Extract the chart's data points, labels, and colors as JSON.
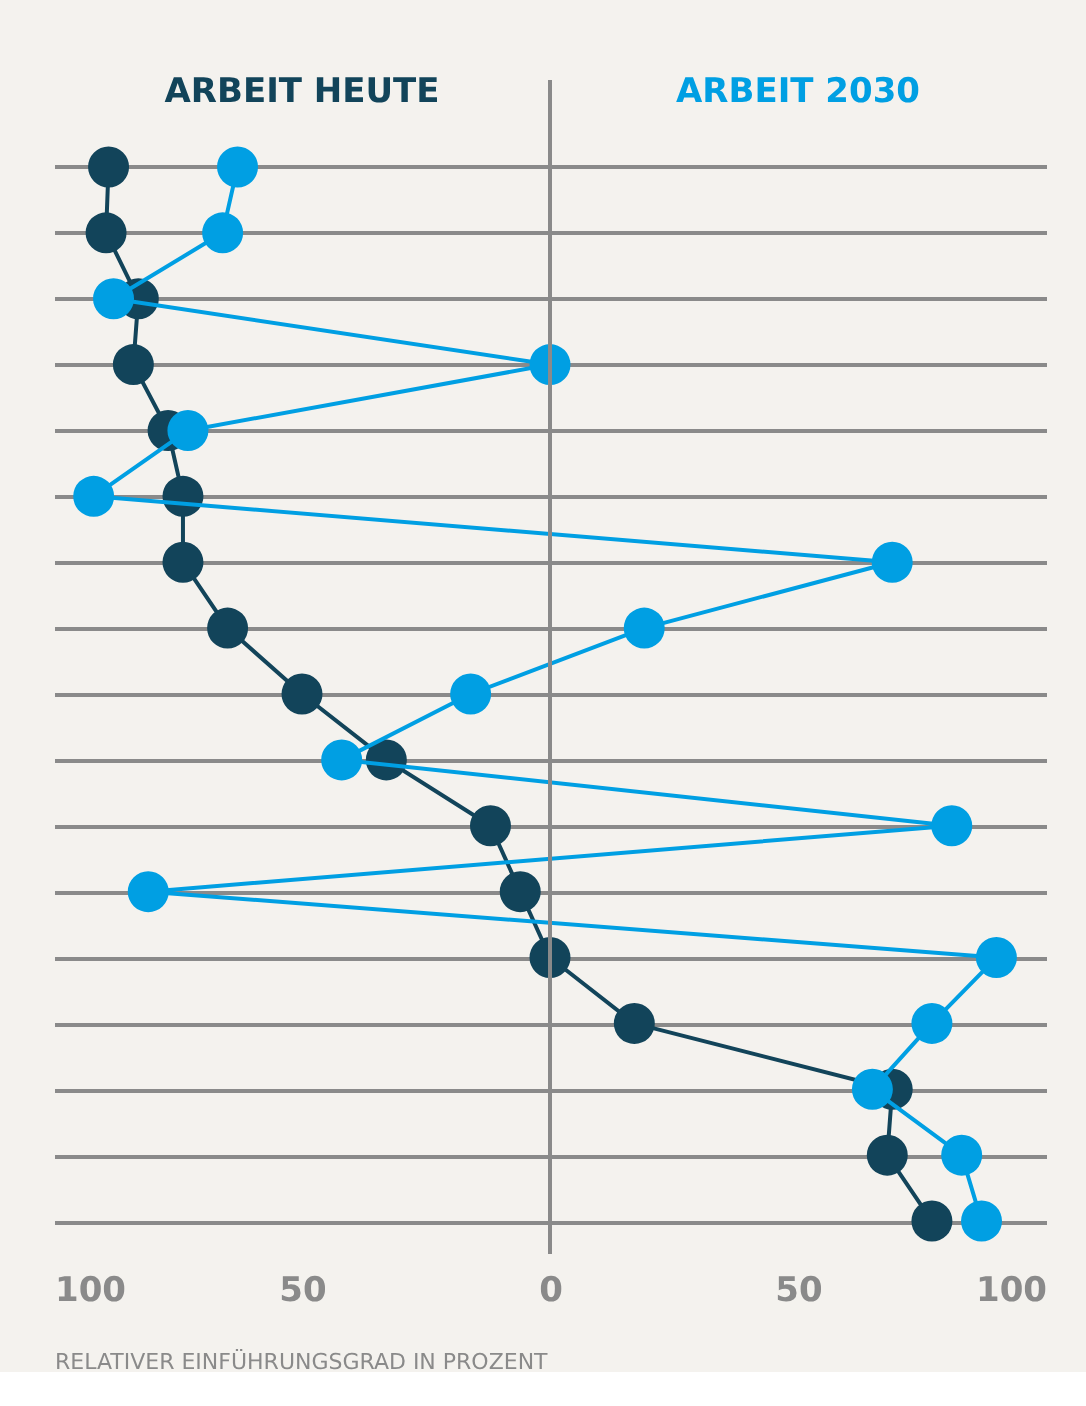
{
  "chart_data": {
    "type": "line",
    "xlabel": "RELATIVER EINFÜHRUNGSGRAD IN PROZENT",
    "categories": [
      null,
      null,
      null,
      null,
      null,
      null,
      null,
      null,
      null,
      null,
      null,
      null,
      null,
      null,
      null,
      null,
      null
    ],
    "series": [
      {
        "name": "ARBEIT HEUTE",
        "color": "#12445a",
        "values": [
          -89,
          -89.5,
          -83,
          -84,
          -77,
          -74,
          -74,
          -65,
          -50,
          -33,
          -12,
          -6,
          0,
          17,
          69,
          68,
          77
        ]
      },
      {
        "name": "ARBEIT 2030",
        "color": "#009fe3",
        "values": [
          -63,
          -66,
          -88,
          0,
          -73,
          -92,
          69,
          19,
          -16,
          -42,
          81,
          -81,
          90,
          77,
          65,
          83,
          87
        ]
      }
    ],
    "orientation": "horizontal",
    "xlim": [
      -100,
      100
    ],
    "xticks": [
      {
        "value": -100,
        "label": "100"
      },
      {
        "value": -50,
        "label": "50"
      },
      0,
      50,
      100
    ],
    "ref_lines": [
      {
        "axis": "x",
        "value": 0,
        "color": "#8a8a8a"
      }
    ],
    "grid": "y",
    "legend": false,
    "tick_labels": "x",
    "marker": "circle",
    "line_style": "solid"
  }
}
